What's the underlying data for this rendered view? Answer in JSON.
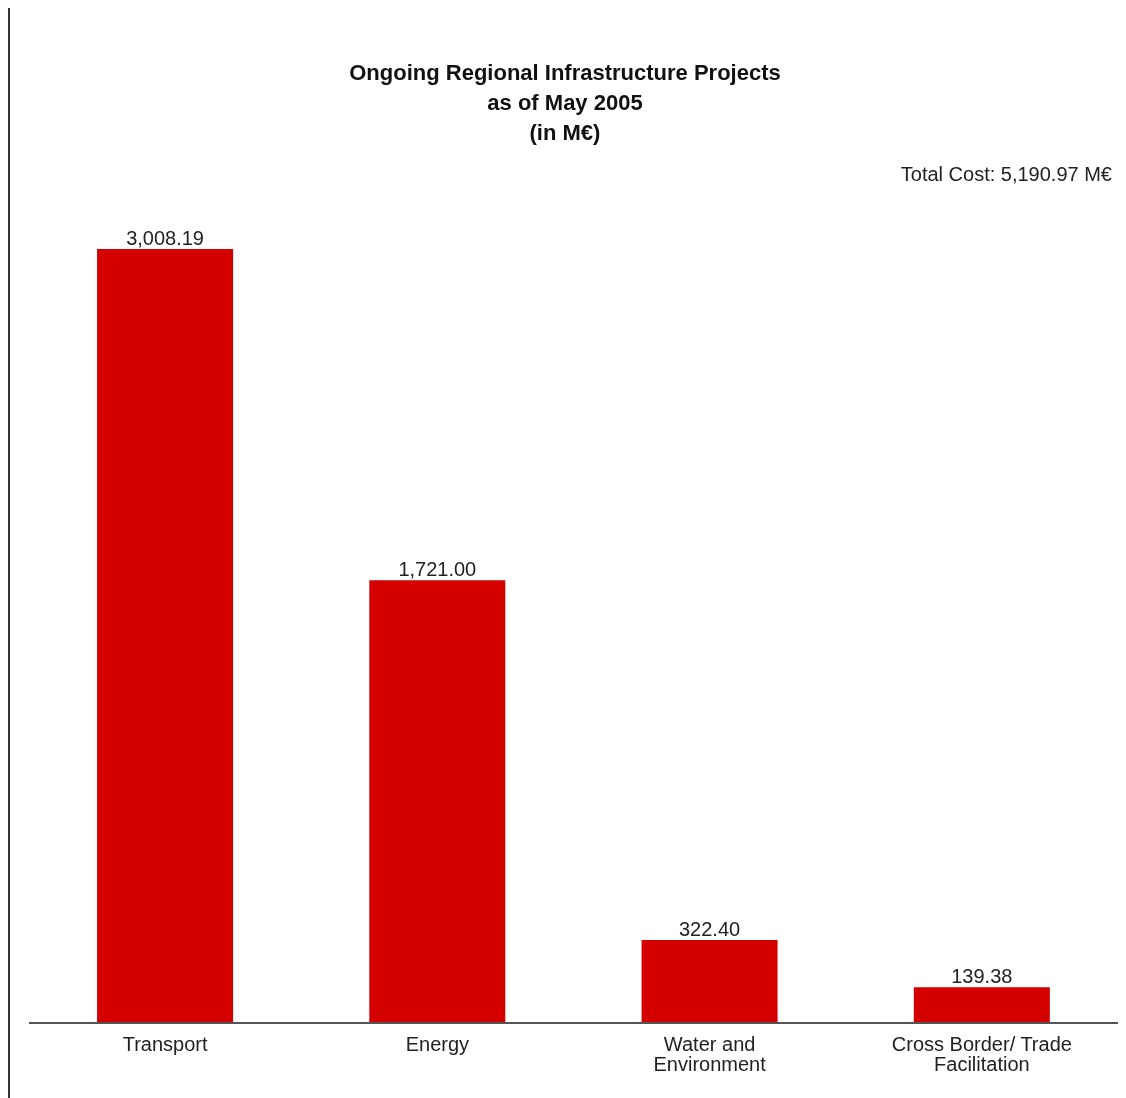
{
  "chart_data": {
    "type": "bar",
    "title": "Ongoing Regional Infrastructure Projects\nas of May 2005\n(in M€)",
    "annotations": [
      "Total Cost: 5,190.97 M€"
    ],
    "categories": [
      "Transport",
      "Energy",
      "Water and Environment",
      "Cross Border/ Trade Facilitation"
    ],
    "values": [
      3008.19,
      1721.0,
      322.4,
      139.38
    ],
    "value_labels": [
      "3,008.19",
      "1,721.00",
      "322.40",
      "139.38"
    ],
    "color": "#d40000"
  }
}
